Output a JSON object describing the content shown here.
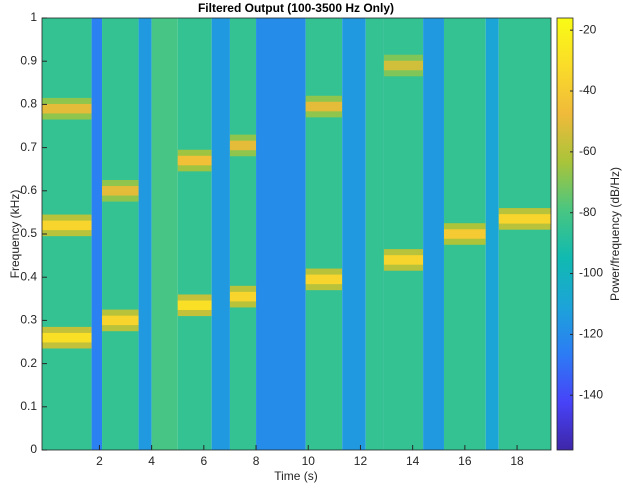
{
  "chart_data": {
    "type": "spectrogram",
    "title": "Filtered Output (100-3500 Hz Only)",
    "x_label": "Time (s)",
    "y_label": "Frequency (kHz)",
    "colorbar_label": "Power/frequency (dB/Hz)",
    "xlim": [
      -0.2,
      19.3
    ],
    "xticks": [
      2,
      4,
      6,
      8,
      10,
      12,
      14,
      16,
      18
    ],
    "ylim": [
      0,
      1
    ],
    "yticks": [
      0,
      0.1,
      0.2,
      0.3,
      0.4,
      0.5,
      0.6,
      0.7,
      0.8,
      0.9,
      1
    ],
    "clim": [
      -158,
      -16
    ],
    "cticks": [
      -140,
      -120,
      -100,
      -80,
      -60,
      -40,
      -20
    ],
    "colormap": [
      "#3e26a8",
      "#4743f8",
      "#2c7cf5",
      "#1ca4d8",
      "#10bab0",
      "#49c681",
      "#a9c43a",
      "#f0ba3a",
      "#fadc29",
      "#f9fb15"
    ],
    "segments": [
      {
        "start": -0.2,
        "end": 1.7,
        "floor": -85,
        "tones": [
          {
            "freq": 0.26,
            "power": -30
          },
          {
            "freq": 0.52,
            "power": -35
          },
          {
            "freq": 0.79,
            "power": -50
          }
        ]
      },
      {
        "start": 1.7,
        "end": 2.1,
        "floor": -125,
        "tones": []
      },
      {
        "start": 2.1,
        "end": 3.5,
        "floor": -85,
        "tones": [
          {
            "freq": 0.3,
            "power": -35
          },
          {
            "freq": 0.6,
            "power": -50
          }
        ]
      },
      {
        "start": 3.5,
        "end": 4.0,
        "floor": -115,
        "tones": []
      },
      {
        "start": 4.0,
        "end": 5.0,
        "floor": -80,
        "tones": []
      },
      {
        "start": 5.0,
        "end": 6.3,
        "floor": -85,
        "tones": [
          {
            "freq": 0.335,
            "power": -30
          },
          {
            "freq": 0.67,
            "power": -45
          }
        ]
      },
      {
        "start": 6.3,
        "end": 7.0,
        "floor": -115,
        "tones": []
      },
      {
        "start": 7.0,
        "end": 8.0,
        "floor": -85,
        "tones": [
          {
            "freq": 0.355,
            "power": -35
          },
          {
            "freq": 0.705,
            "power": -50
          }
        ]
      },
      {
        "start": 8.0,
        "end": 9.9,
        "floor": -120,
        "tones": []
      },
      {
        "start": 9.9,
        "end": 11.3,
        "floor": -85,
        "tones": [
          {
            "freq": 0.395,
            "power": -35
          },
          {
            "freq": 0.795,
            "power": -50
          }
        ]
      },
      {
        "start": 11.3,
        "end": 12.2,
        "floor": -115,
        "tones": []
      },
      {
        "start": 12.2,
        "end": 12.9,
        "floor": -85,
        "tones": []
      },
      {
        "start": 12.9,
        "end": 14.4,
        "floor": -85,
        "tones": [
          {
            "freq": 0.44,
            "power": -35
          },
          {
            "freq": 0.89,
            "power": -55
          }
        ]
      },
      {
        "start": 14.4,
        "end": 15.2,
        "floor": -115,
        "tones": []
      },
      {
        "start": 15.2,
        "end": 16.8,
        "floor": -85,
        "tones": [
          {
            "freq": 0.5,
            "power": -40
          }
        ]
      },
      {
        "start": 16.8,
        "end": 17.3,
        "floor": -110,
        "tones": []
      },
      {
        "start": 17.3,
        "end": 19.3,
        "floor": -85,
        "tones": [
          {
            "freq": 0.535,
            "power": -35
          }
        ]
      }
    ]
  }
}
